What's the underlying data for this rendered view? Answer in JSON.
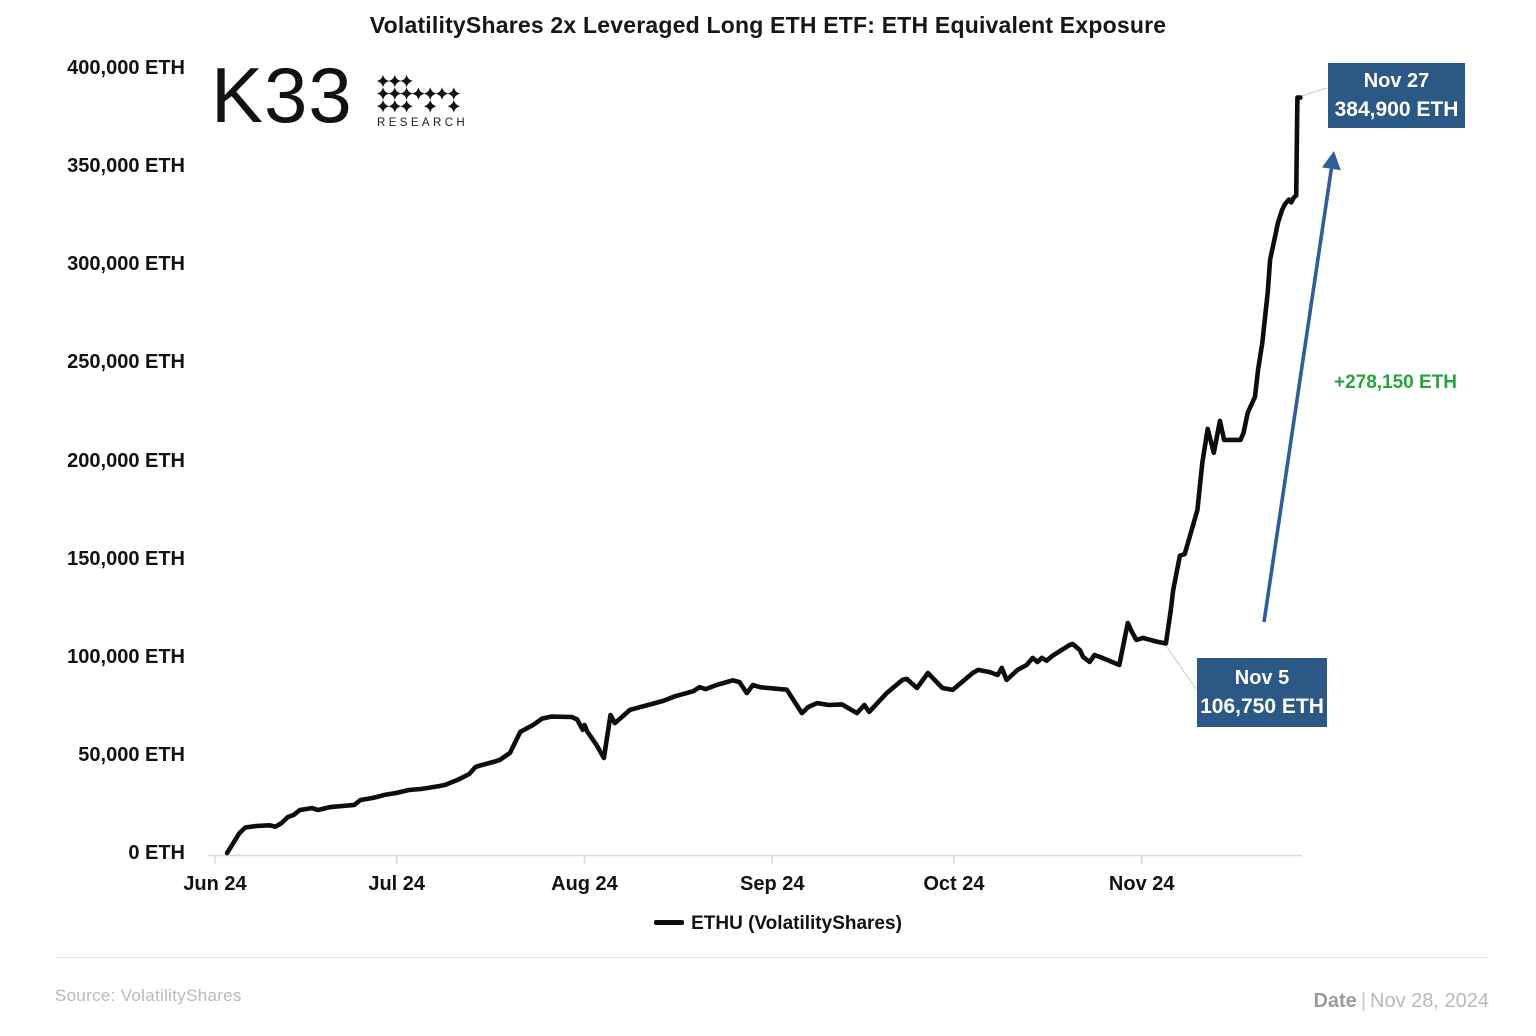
{
  "title": "VolatilityShares 2x Leveraged Long ETH ETF: ETH Equivalent Exposure",
  "logo": {
    "text": "K33",
    "subtext": "RESEARCH"
  },
  "chart_data": {
    "type": "line",
    "title": "VolatilityShares 2x Leveraged Long ETH ETF: ETH Equivalent Exposure",
    "grid": "off",
    "x_axis": {
      "day_zero": "Jun 1, 2024",
      "tick_days": [
        0,
        30,
        61,
        92,
        122,
        153
      ],
      "tick_labels": [
        "Jun 24",
        "Jul 24",
        "Aug 24",
        "Sep 24",
        "Oct 24",
        "Nov 24"
      ]
    },
    "y_axis": {
      "min": 0,
      "max": 400000,
      "step": 50000,
      "unit": "ETH",
      "tick_labels": [
        "0 ETH",
        "50,000 ETH",
        "100,000 ETH",
        "150,000 ETH",
        "200,000 ETH",
        "250,000 ETH",
        "300,000 ETH",
        "350,000 ETH",
        "400,000 ETH"
      ]
    },
    "legend": {
      "label": "ETHU (VolatilityShares)",
      "position": "bottom-center"
    },
    "series": [
      {
        "name": "ETHU (VolatilityShares)",
        "color": "#0d0d0d",
        "points": [
          [
            2,
            0
          ],
          [
            3,
            5000
          ],
          [
            4,
            10000
          ],
          [
            5,
            13000
          ],
          [
            7,
            13800
          ],
          [
            9,
            14100
          ],
          [
            10,
            13400
          ],
          [
            11,
            15300
          ],
          [
            12,
            18300
          ],
          [
            13,
            19400
          ],
          [
            14,
            21900
          ],
          [
            16,
            22900
          ],
          [
            17,
            21900
          ],
          [
            19,
            23400
          ],
          [
            23,
            24500
          ],
          [
            24,
            27000
          ],
          [
            26,
            28000
          ],
          [
            28,
            29600
          ],
          [
            30,
            30600
          ],
          [
            32,
            32100
          ],
          [
            34,
            32600
          ],
          [
            37,
            34100
          ],
          [
            38,
            34700
          ],
          [
            40,
            37200
          ],
          [
            41,
            38700
          ],
          [
            42,
            40300
          ],
          [
            43,
            43800
          ],
          [
            44,
            44800
          ],
          [
            46,
            46400
          ],
          [
            47,
            47400
          ],
          [
            48.7,
            51000
          ],
          [
            50.4,
            61700
          ],
          [
            52.5,
            65200
          ],
          [
            54,
            68500
          ],
          [
            55.5,
            69500
          ],
          [
            58.9,
            69300
          ],
          [
            59.8,
            68000
          ],
          [
            60.7,
            62800
          ],
          [
            61,
            65200
          ],
          [
            61.5,
            61700
          ],
          [
            63,
            55000
          ],
          [
            64.2,
            48400
          ],
          [
            65.3,
            70300
          ],
          [
            66,
            66200
          ],
          [
            67,
            68800
          ],
          [
            68.5,
            72900
          ],
          [
            71.5,
            75400
          ],
          [
            74,
            77500
          ],
          [
            76,
            79900
          ],
          [
            79,
            82500
          ],
          [
            80,
            84500
          ],
          [
            81,
            83500
          ],
          [
            83,
            85800
          ],
          [
            85.5,
            88000
          ],
          [
            86.6,
            87100
          ],
          [
            87.8,
            81500
          ],
          [
            88.8,
            85600
          ],
          [
            90,
            84500
          ],
          [
            94.4,
            83200
          ],
          [
            96.9,
            71300
          ],
          [
            98,
            74500
          ],
          [
            99.4,
            76400
          ],
          [
            101.3,
            75400
          ],
          [
            103.5,
            75700
          ],
          [
            106,
            71300
          ],
          [
            107.2,
            75400
          ],
          [
            108,
            71900
          ],
          [
            110.9,
            81500
          ],
          [
            113.5,
            88200
          ],
          [
            114.2,
            88700
          ],
          [
            115.9,
            84100
          ],
          [
            117.7,
            91700
          ],
          [
            120.1,
            84100
          ],
          [
            121.8,
            83100
          ],
          [
            125.1,
            91700
          ],
          [
            126,
            93300
          ],
          [
            127.9,
            92200
          ],
          [
            129.2,
            90700
          ],
          [
            129.9,
            94300
          ],
          [
            130.7,
            88200
          ],
          [
            132.5,
            93300
          ],
          [
            134,
            95800
          ],
          [
            135,
            99400
          ],
          [
            135.8,
            97300
          ],
          [
            136.5,
            99400
          ],
          [
            137.3,
            98000
          ],
          [
            138.2,
            100400
          ],
          [
            141.1,
            106000
          ],
          [
            141.6,
            106500
          ],
          [
            142.8,
            103400
          ],
          [
            143.3,
            100000
          ],
          [
            144.4,
            97300
          ],
          [
            145.2,
            100900
          ],
          [
            146.1,
            99900
          ],
          [
            149.3,
            95800
          ],
          [
            150.7,
            117200
          ],
          [
            151.4,
            112600
          ],
          [
            152.1,
            108600
          ],
          [
            153.2,
            109600
          ],
          [
            155.3,
            107800
          ],
          [
            157,
            106750
          ],
          [
            157.8,
            123800
          ],
          [
            158.2,
            134000
          ],
          [
            159.3,
            151500
          ],
          [
            160.1,
            152300
          ],
          [
            162.2,
            174800
          ],
          [
            163,
            198800
          ],
          [
            163.9,
            216100
          ],
          [
            164.9,
            203900
          ],
          [
            165.9,
            220200
          ],
          [
            166.6,
            210500
          ],
          [
            169.3,
            210500
          ],
          [
            169.8,
            214000
          ],
          [
            170.5,
            224300
          ],
          [
            171.7,
            232500
          ],
          [
            172.2,
            246000
          ],
          [
            172.9,
            260000
          ],
          [
            173.8,
            285500
          ],
          [
            174.2,
            302300
          ],
          [
            175,
            314000
          ],
          [
            175.5,
            321200
          ],
          [
            176.2,
            327800
          ],
          [
            176.6,
            330400
          ],
          [
            177.3,
            333000
          ],
          [
            177.7,
            331500
          ],
          [
            178.1,
            334000
          ],
          [
            178.5,
            335000
          ],
          [
            178.7,
            384900
          ],
          [
            179.2,
            384900
          ]
        ]
      }
    ],
    "annotations": {
      "nov27": {
        "date": "Nov 27",
        "value_label": "384,900 ETH",
        "day": 178.7,
        "value": 384900
      },
      "nov5": {
        "date": "Nov 5",
        "value_label": "106,750 ETH",
        "day": 157,
        "value": 106750
      },
      "delta_label": "+278,150 ETH",
      "colors": {
        "callout_bg": "#2b5884",
        "arrow_blue": "#2e6096",
        "delta_green": "#27a53c",
        "line_black": "#0d0d0d",
        "axis_gray": "#d8d8d8",
        "connector_gray": "#c8c8c8"
      }
    }
  },
  "footer": {
    "source": "Source: VolatilityShares",
    "date_label": "Date",
    "date_separator": "|",
    "date_value": "Nov 28, 2024"
  }
}
